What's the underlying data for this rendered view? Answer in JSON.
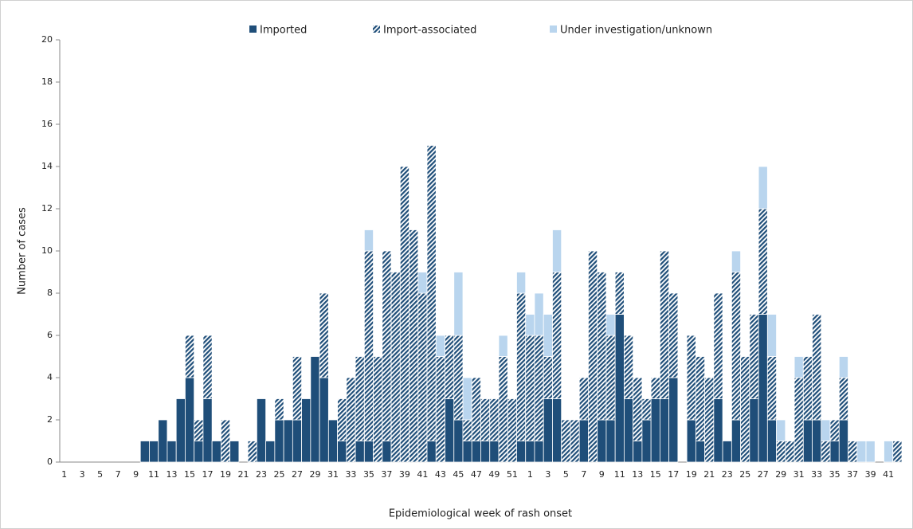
{
  "chart_data": {
    "type": "stacked-bar",
    "x_label": "Epidemiological week of rash onset",
    "y_label": "Number of cases",
    "categories": [
      1,
      null,
      3,
      null,
      5,
      null,
      7,
      null,
      9,
      null,
      11,
      null,
      13,
      null,
      15,
      null,
      17,
      null,
      19,
      null,
      21,
      null,
      23,
      null,
      25,
      null,
      27,
      null,
      29,
      null,
      31,
      null,
      33,
      null,
      35,
      null,
      37,
      null,
      39,
      null,
      41,
      null,
      43,
      null,
      45,
      null,
      47,
      null,
      49,
      null,
      51,
      null,
      1,
      null,
      3,
      null,
      5,
      null,
      7,
      null,
      9,
      null,
      11,
      null,
      13,
      null,
      15,
      null,
      17,
      null,
      19,
      null,
      21,
      null,
      23,
      null,
      25,
      null,
      27,
      null,
      29,
      null,
      31,
      null,
      33,
      null,
      35,
      null,
      37,
      null,
      39,
      null,
      41,
      null
    ],
    "series": [
      {
        "name": "Imported",
        "color": "#1f4e79",
        "values": [
          0,
          0,
          0,
          0,
          0,
          0,
          0,
          0,
          0,
          1,
          1,
          2,
          1,
          3,
          4,
          1,
          3,
          1,
          0,
          1,
          0,
          0,
          3,
          1,
          2,
          2,
          2,
          3,
          5,
          4,
          2,
          1,
          0,
          1,
          1,
          0,
          1,
          0,
          0,
          0,
          0,
          1,
          0,
          3,
          2,
          1,
          1,
          1,
          1,
          0,
          0,
          1,
          1,
          1,
          3,
          3,
          0,
          0,
          2,
          0,
          2,
          2,
          7,
          3,
          1,
          2,
          3,
          3,
          4,
          0,
          2,
          1,
          0,
          3,
          1,
          2,
          0,
          3,
          7,
          2,
          0,
          0,
          0,
          2,
          2,
          0,
          1,
          2,
          0,
          0,
          0,
          0,
          0,
          0
        ]
      },
      {
        "name": "Import-associated",
        "color": "#1f4e79",
        "pattern": "diagonal",
        "values": [
          0,
          0,
          0,
          0,
          0,
          0,
          0,
          0,
          0,
          0,
          0,
          0,
          0,
          0,
          2,
          1,
          3,
          0,
          2,
          0,
          0,
          1,
          0,
          0,
          1,
          0,
          3,
          0,
          0,
          4,
          0,
          2,
          4,
          4,
          9,
          5,
          9,
          9,
          14,
          11,
          8,
          14,
          5,
          3,
          4,
          1,
          3,
          2,
          2,
          5,
          3,
          7,
          5,
          5,
          2,
          6,
          2,
          2,
          2,
          10,
          7,
          4,
          2,
          3,
          3,
          1,
          1,
          7,
          4,
          0,
          4,
          4,
          4,
          5,
          0,
          7,
          5,
          4,
          5,
          3,
          1,
          1,
          4,
          3,
          5,
          1,
          1,
          2,
          1,
          0,
          0,
          0,
          0,
          1
        ]
      },
      {
        "name": "Under investigation/unknown",
        "color": "#b9d5ee",
        "values": [
          0,
          0,
          0,
          0,
          0,
          0,
          0,
          0,
          0,
          0,
          0,
          0,
          0,
          0,
          0,
          0,
          0,
          0,
          0,
          0,
          0,
          0,
          0,
          0,
          0,
          0,
          0,
          0,
          0,
          0,
          0,
          0,
          0,
          0,
          1,
          0,
          0,
          0,
          0,
          0,
          1,
          0,
          1,
          0,
          3,
          2,
          0,
          0,
          0,
          1,
          0,
          1,
          1,
          2,
          2,
          2,
          0,
          0,
          0,
          0,
          0,
          1,
          0,
          0,
          0,
          0,
          0,
          0,
          0,
          0,
          0,
          0,
          0,
          0,
          0,
          1,
          0,
          0,
          2,
          2,
          1,
          0,
          1,
          0,
          0,
          1,
          0,
          1,
          0,
          1,
          1,
          0,
          1,
          0
        ]
      }
    ],
    "ylim": [
      0,
      20
    ],
    "yticks": [
      0,
      2,
      4,
      6,
      8,
      10,
      12,
      14,
      16,
      18,
      20
    ],
    "grid": false,
    "legend": "top"
  }
}
